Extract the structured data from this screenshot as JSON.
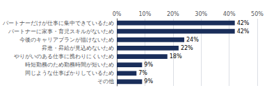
{
  "chart_data": {
    "type": "bar",
    "orientation": "horizontal",
    "categories": [
      "パートナーだけが仕事に集中できているため",
      "パートナーに家事・育児スキルがないため",
      "今後のキャリアプランが描けないため",
      "昇進・昇給が見込めないため",
      "やりがいのある仕事に携わりにくいため",
      "時短勤務のため勤務時間が短いため",
      "同じような仕事ばかりしているため",
      "その他"
    ],
    "values": [
      42,
      42,
      24,
      22,
      18,
      9,
      7,
      9
    ],
    "value_labels": [
      "42%",
      "42%",
      "24%",
      "22%",
      "18%",
      "9%",
      "7%",
      "9%"
    ],
    "data_labels": true,
    "color": "#1a2e5a",
    "xlim": [
      0,
      50
    ],
    "xticks": [
      {
        "value": 0,
        "label": "0%"
      },
      {
        "value": 10,
        "label": "10%"
      },
      {
        "value": 20,
        "label": "20%"
      },
      {
        "value": 30,
        "label": "30%"
      },
      {
        "value": 40,
        "label": "40%"
      },
      {
        "value": 50,
        "label": "50%"
      }
    ],
    "grid": true
  }
}
